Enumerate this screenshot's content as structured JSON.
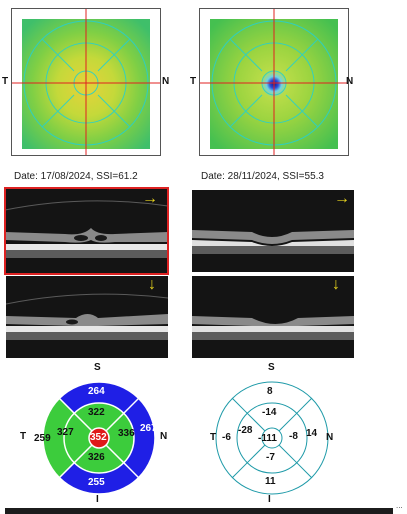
{
  "left": {
    "date_label": "Date: 17/08/2024, SSI=61.2",
    "orient": {
      "t": "T",
      "n": "N",
      "s": "S",
      "i": "I"
    },
    "etdrs": {
      "center": "352",
      "inner_s": "322",
      "inner_t": "327",
      "inner_n": "336",
      "inner_i": "326",
      "outer_s": "264",
      "outer_t": "259",
      "outer_n": "267",
      "outer_i": "255"
    },
    "colors": {
      "outer": "#1f1fe6",
      "inner": "#3ccc3c",
      "center": "#e01a1a",
      "ring_line": "#ffffff"
    }
  },
  "right": {
    "date_label": "Date: 28/11/2024, SSI=55.3",
    "orient": {
      "t": "T",
      "n": "N",
      "s": "S",
      "i": "I"
    },
    "etdrs": {
      "center": "-111",
      "inner_s": "-14",
      "inner_t": "-28",
      "inner_n": "-8",
      "inner_i": "-7",
      "outer_s": "8",
      "outer_t": "-6",
      "outer_n": "14",
      "outer_i": "11"
    },
    "colors": {
      "ring_line": "#1e9aa8"
    }
  },
  "arrows": {
    "right_arrow": "→",
    "down_arrow": "↓",
    "arrow_color": "#e6d21e"
  },
  "bottom_bar": {
    "tail": "..."
  }
}
